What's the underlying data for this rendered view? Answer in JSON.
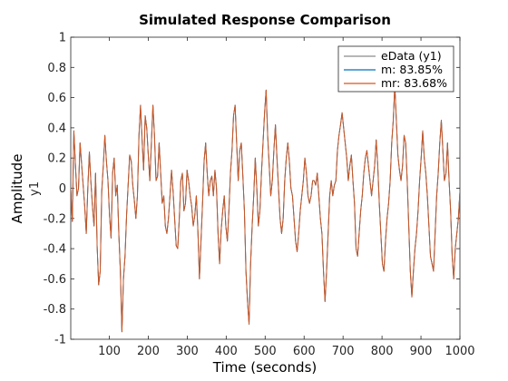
{
  "chart_data": {
    "type": "line",
    "title": "Simulated Response Comparison",
    "xlabel": "Time (seconds)",
    "ylabel": "Amplitude",
    "channel_label": "y1",
    "xlim": [
      1,
      1000
    ],
    "ylim": [
      -1,
      1
    ],
    "xticks": [
      100,
      200,
      300,
      400,
      500,
      600,
      700,
      800,
      900,
      1000
    ],
    "yticks": [
      -1,
      -0.8,
      -0.6,
      -0.4,
      -0.2,
      0,
      0.2,
      0.4,
      0.6,
      0.8,
      1
    ],
    "xtick_labels": [
      "100",
      "200",
      "300",
      "400",
      "500",
      "600",
      "700",
      "800",
      "900",
      "1000"
    ],
    "ytick_labels": [
      "-1",
      "-0.8",
      "-0.6",
      "-0.4",
      "-0.2",
      "0",
      "0.2",
      "0.4",
      "0.6",
      "0.8",
      "1"
    ],
    "grid": false,
    "legend_position": "top-right",
    "series": [
      {
        "name": "eData (y1)",
        "color": "#8c8c8c",
        "values": [
          0.0,
          -0.22,
          0.38,
          0.16,
          -0.05,
          0.0,
          0.3,
          0.16,
          0.02,
          -0.12,
          -0.3,
          0.0,
          0.24,
          0.04,
          -0.12,
          -0.25,
          0.1,
          -0.38,
          -0.64,
          -0.55,
          -0.02,
          0.15,
          0.35,
          0.18,
          0.05,
          -0.18,
          -0.33,
          0.1,
          0.2,
          -0.05,
          0.02,
          -0.3,
          -0.55,
          -0.95,
          -0.6,
          -0.45,
          -0.18,
          0.02,
          0.22,
          0.18,
          0.02,
          -0.08,
          -0.2,
          -0.05,
          0.35,
          0.55,
          0.32,
          0.12,
          0.48,
          0.4,
          0.22,
          0.05,
          0.3,
          0.55,
          0.35,
          0.05,
          0.08,
          0.3,
          0.1,
          -0.1,
          -0.05,
          -0.25,
          -0.3,
          -0.2,
          -0.05,
          0.12,
          -0.02,
          -0.2,
          -0.38,
          -0.4,
          -0.2,
          0.05,
          0.1,
          -0.15,
          -0.1,
          0.12,
          0.05,
          -0.05,
          -0.12,
          -0.25,
          -0.18,
          -0.05,
          -0.28,
          -0.6,
          -0.35,
          -0.1,
          0.18,
          0.3,
          0.1,
          -0.05,
          0.05,
          0.08,
          -0.05,
          0.12,
          0.0,
          -0.3,
          -0.5,
          -0.28,
          -0.15,
          -0.05,
          -0.25,
          -0.35,
          -0.15,
          0.1,
          0.25,
          0.48,
          0.55,
          0.3,
          0.05,
          0.25,
          0.3,
          0.08,
          -0.15,
          -0.55,
          -0.75,
          -0.9,
          -0.5,
          -0.25,
          -0.05,
          0.2,
          0.0,
          -0.25,
          -0.15,
          0.1,
          0.3,
          0.5,
          0.65,
          0.35,
          0.15,
          -0.05,
          0.05,
          0.25,
          0.42,
          0.2,
          0.0,
          -0.2,
          -0.3,
          -0.2,
          0.05,
          0.2,
          0.3,
          0.18,
          0.0,
          -0.05,
          -0.2,
          -0.35,
          -0.42,
          -0.3,
          -0.15,
          -0.05,
          0.05,
          0.2,
          0.1,
          -0.05,
          -0.1,
          -0.05,
          0.05,
          0.05,
          0.02,
          0.1,
          -0.05,
          -0.2,
          -0.3,
          -0.55,
          -0.75,
          -0.55,
          -0.3,
          -0.05,
          0.05,
          -0.05,
          0.02,
          0.05,
          0.25,
          0.35,
          0.42,
          0.5,
          0.4,
          0.3,
          0.2,
          0.05,
          0.15,
          0.22,
          0.05,
          -0.1,
          -0.4,
          -0.45,
          -0.3,
          -0.15,
          -0.05,
          0.1,
          0.2,
          0.25,
          0.15,
          0.05,
          -0.05,
          0.05,
          0.15,
          0.32,
          0.15,
          -0.1,
          -0.3,
          -0.5,
          -0.55,
          -0.35,
          -0.2,
          -0.1,
          0.05,
          0.3,
          0.45,
          0.68,
          0.45,
          0.22,
          0.12,
          0.05,
          0.15,
          0.35,
          0.3,
          0.05,
          -0.25,
          -0.55,
          -0.72,
          -0.55,
          -0.4,
          -0.3,
          -0.15,
          0.05,
          0.2,
          0.38,
          0.2,
          0.1,
          -0.05,
          -0.25,
          -0.45,
          -0.5,
          -0.55,
          -0.3,
          -0.05,
          0.1,
          0.3,
          0.45,
          0.25,
          0.05,
          0.1,
          0.3,
          0.05,
          -0.15,
          -0.45,
          -0.6,
          -0.4,
          -0.3,
          -0.2,
          -0.02
        ]
      },
      {
        "name": "m: 83.85%",
        "color": "#0072bd",
        "values": [
          0.0,
          -0.22,
          0.38,
          0.16,
          -0.05,
          0.0,
          0.3,
          0.16,
          0.02,
          -0.12,
          -0.3,
          0.0,
          0.24,
          0.04,
          -0.12,
          -0.25,
          0.1,
          -0.38,
          -0.64,
          -0.55,
          -0.02,
          0.15,
          0.35,
          0.18,
          0.05,
          -0.18,
          -0.33,
          0.1,
          0.2,
          -0.05,
          0.02,
          -0.3,
          -0.55,
          -0.95,
          -0.6,
          -0.45,
          -0.18,
          0.02,
          0.22,
          0.18,
          0.02,
          -0.08,
          -0.2,
          -0.05,
          0.35,
          0.55,
          0.32,
          0.12,
          0.48,
          0.4,
          0.22,
          0.05,
          0.3,
          0.55,
          0.35,
          0.05,
          0.08,
          0.3,
          0.1,
          -0.1,
          -0.05,
          -0.25,
          -0.3,
          -0.2,
          -0.05,
          0.12,
          -0.02,
          -0.2,
          -0.38,
          -0.4,
          -0.2,
          0.05,
          0.1,
          -0.15,
          -0.1,
          0.12,
          0.05,
          -0.05,
          -0.12,
          -0.25,
          -0.18,
          -0.05,
          -0.28,
          -0.6,
          -0.35,
          -0.1,
          0.18,
          0.3,
          0.1,
          -0.05,
          0.05,
          0.08,
          -0.05,
          0.12,
          0.0,
          -0.3,
          -0.5,
          -0.28,
          -0.15,
          -0.05,
          -0.25,
          -0.35,
          -0.15,
          0.1,
          0.25,
          0.48,
          0.55,
          0.3,
          0.05,
          0.25,
          0.3,
          0.08,
          -0.15,
          -0.55,
          -0.75,
          -0.9,
          -0.5,
          -0.25,
          -0.05,
          0.2,
          0.0,
          -0.25,
          -0.15,
          0.1,
          0.3,
          0.5,
          0.65,
          0.35,
          0.15,
          -0.05,
          0.05,
          0.25,
          0.42,
          0.2,
          0.0,
          -0.2,
          -0.3,
          -0.2,
          0.05,
          0.2,
          0.3,
          0.18,
          0.0,
          -0.05,
          -0.2,
          -0.35,
          -0.42,
          -0.3,
          -0.15,
          -0.05,
          0.05,
          0.2,
          0.1,
          -0.05,
          -0.1,
          -0.05,
          0.05,
          0.05,
          0.02,
          0.1,
          -0.05,
          -0.2,
          -0.3,
          -0.55,
          -0.75,
          -0.55,
          -0.3,
          -0.05,
          0.05,
          -0.05,
          0.02,
          0.05,
          0.25,
          0.35,
          0.42,
          0.5,
          0.4,
          0.3,
          0.2,
          0.05,
          0.15,
          0.22,
          0.05,
          -0.1,
          -0.4,
          -0.45,
          -0.3,
          -0.15,
          -0.05,
          0.1,
          0.2,
          0.25,
          0.15,
          0.05,
          -0.05,
          0.05,
          0.15,
          0.32,
          0.15,
          -0.1,
          -0.3,
          -0.5,
          -0.55,
          -0.35,
          -0.2,
          -0.1,
          0.05,
          0.3,
          0.45,
          0.68,
          0.45,
          0.22,
          0.12,
          0.05,
          0.15,
          0.35,
          0.3,
          0.05,
          -0.25,
          -0.55,
          -0.72,
          -0.55,
          -0.4,
          -0.3,
          -0.15,
          0.05,
          0.2,
          0.38,
          0.2,
          0.1,
          -0.05,
          -0.25,
          -0.45,
          -0.5,
          -0.55,
          -0.3,
          -0.05,
          0.1,
          0.3,
          0.45,
          0.25,
          0.05,
          0.1,
          0.3,
          0.05,
          -0.15,
          -0.45,
          -0.6,
          -0.4,
          -0.3,
          -0.2,
          -0.02
        ]
      },
      {
        "name": "mr: 83.68%",
        "color": "#d95319",
        "values": [
          0.0,
          -0.22,
          0.38,
          0.16,
          -0.05,
          0.0,
          0.3,
          0.16,
          0.02,
          -0.12,
          -0.3,
          0.0,
          0.24,
          0.04,
          -0.12,
          -0.25,
          0.1,
          -0.38,
          -0.64,
          -0.55,
          -0.02,
          0.15,
          0.35,
          0.18,
          0.05,
          -0.18,
          -0.33,
          0.1,
          0.2,
          -0.05,
          0.02,
          -0.3,
          -0.55,
          -0.95,
          -0.6,
          -0.45,
          -0.18,
          0.02,
          0.22,
          0.18,
          0.02,
          -0.08,
          -0.2,
          -0.05,
          0.35,
          0.55,
          0.32,
          0.12,
          0.48,
          0.4,
          0.22,
          0.05,
          0.3,
          0.55,
          0.35,
          0.05,
          0.08,
          0.3,
          0.1,
          -0.1,
          -0.05,
          -0.25,
          -0.3,
          -0.2,
          -0.05,
          0.12,
          -0.02,
          -0.2,
          -0.38,
          -0.4,
          -0.2,
          0.05,
          0.1,
          -0.15,
          -0.1,
          0.12,
          0.05,
          -0.05,
          -0.12,
          -0.25,
          -0.18,
          -0.05,
          -0.28,
          -0.6,
          -0.35,
          -0.1,
          0.18,
          0.3,
          0.1,
          -0.05,
          0.05,
          0.08,
          -0.05,
          0.12,
          0.0,
          -0.3,
          -0.5,
          -0.28,
          -0.15,
          -0.05,
          -0.25,
          -0.35,
          -0.15,
          0.1,
          0.25,
          0.48,
          0.55,
          0.3,
          0.05,
          0.25,
          0.3,
          0.08,
          -0.15,
          -0.55,
          -0.75,
          -0.9,
          -0.5,
          -0.25,
          -0.05,
          0.2,
          0.0,
          -0.25,
          -0.15,
          0.1,
          0.3,
          0.5,
          0.65,
          0.35,
          0.15,
          -0.05,
          0.05,
          0.25,
          0.42,
          0.2,
          0.0,
          -0.2,
          -0.3,
          -0.2,
          0.05,
          0.2,
          0.3,
          0.18,
          0.0,
          -0.05,
          -0.2,
          -0.35,
          -0.42,
          -0.3,
          -0.15,
          -0.05,
          0.05,
          0.2,
          0.1,
          -0.05,
          -0.1,
          -0.05,
          0.05,
          0.05,
          0.02,
          0.1,
          -0.05,
          -0.2,
          -0.3,
          -0.55,
          -0.75,
          -0.55,
          -0.3,
          -0.05,
          0.05,
          -0.05,
          0.02,
          0.05,
          0.25,
          0.35,
          0.42,
          0.5,
          0.4,
          0.3,
          0.2,
          0.05,
          0.15,
          0.22,
          0.05,
          -0.1,
          -0.4,
          -0.45,
          -0.3,
          -0.15,
          -0.05,
          0.1,
          0.2,
          0.25,
          0.15,
          0.05,
          -0.05,
          0.05,
          0.15,
          0.32,
          0.15,
          -0.1,
          -0.3,
          -0.5,
          -0.55,
          -0.35,
          -0.2,
          -0.1,
          0.05,
          0.3,
          0.45,
          0.68,
          0.45,
          0.22,
          0.12,
          0.05,
          0.15,
          0.35,
          0.3,
          0.05,
          -0.25,
          -0.55,
          -0.72,
          -0.55,
          -0.4,
          -0.3,
          -0.15,
          0.05,
          0.2,
          0.38,
          0.2,
          0.1,
          -0.05,
          -0.25,
          -0.45,
          -0.5,
          -0.55,
          -0.3,
          -0.05,
          0.1,
          0.3,
          0.45,
          0.25,
          0.05,
          0.1,
          0.3,
          0.05,
          -0.15,
          -0.45,
          -0.6,
          -0.4,
          -0.3,
          -0.2,
          -0.02
        ]
      }
    ]
  }
}
